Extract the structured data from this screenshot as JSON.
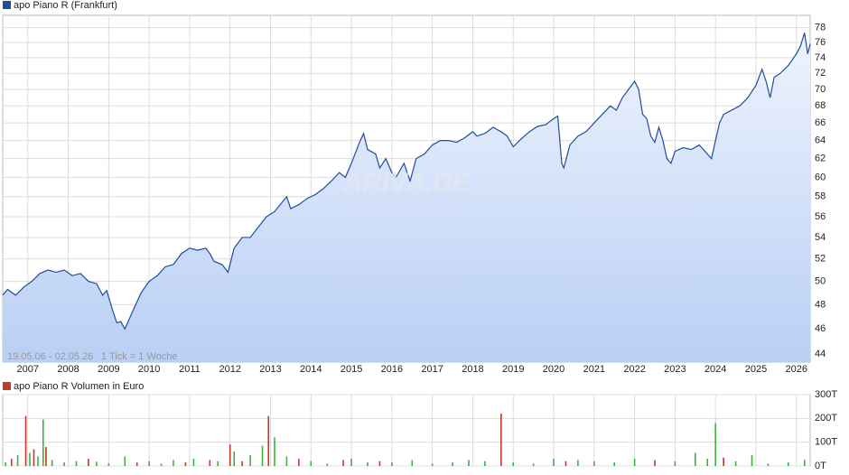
{
  "chart_data": [
    {
      "type": "line",
      "log_scale": true,
      "grid": true,
      "area": true,
      "watermark": "ARIVA.DE",
      "period": "19.05.06 - 02.05.26",
      "tick_note": "1 Tick = 1 Woche",
      "x": [
        2006.38,
        2006.5,
        2006.7,
        2006.9,
        2007.1,
        2007.3,
        2007.5,
        2007.7,
        2007.9,
        2008.1,
        2008.3,
        2008.5,
        2008.7,
        2008.85,
        2008.95,
        2009.1,
        2009.2,
        2009.3,
        2009.4,
        2009.6,
        2009.8,
        2010.0,
        2010.2,
        2010.4,
        2010.6,
        2010.8,
        2011.0,
        2011.2,
        2011.4,
        2011.5,
        2011.6,
        2011.8,
        2011.95,
        2012.1,
        2012.3,
        2012.5,
        2012.7,
        2012.9,
        2013.1,
        2013.3,
        2013.4,
        2013.5,
        2013.7,
        2013.9,
        2014.1,
        2014.3,
        2014.5,
        2014.7,
        2014.85,
        2015.0,
        2015.2,
        2015.3,
        2015.4,
        2015.6,
        2015.7,
        2015.85,
        2016.0,
        2016.1,
        2016.3,
        2016.45,
        2016.6,
        2016.8,
        2017.0,
        2017.2,
        2017.4,
        2017.6,
        2017.8,
        2018.0,
        2018.1,
        2018.3,
        2018.5,
        2018.7,
        2018.85,
        2019.0,
        2019.2,
        2019.4,
        2019.6,
        2019.8,
        2020.0,
        2020.1,
        2020.2,
        2020.25,
        2020.4,
        2020.6,
        2020.8,
        2021.0,
        2021.2,
        2021.4,
        2021.55,
        2021.7,
        2021.85,
        2022.0,
        2022.1,
        2022.2,
        2022.3,
        2022.4,
        2022.5,
        2022.6,
        2022.7,
        2022.8,
        2022.9,
        2023.0,
        2023.2,
        2023.4,
        2023.6,
        2023.8,
        2023.9,
        2024.0,
        2024.1,
        2024.2,
        2024.4,
        2024.6,
        2024.8,
        2025.0,
        2025.15,
        2025.25,
        2025.35,
        2025.45,
        2025.6,
        2025.8,
        2026.0,
        2026.1,
        2026.2,
        2026.28,
        2026.34
      ],
      "series": [
        {
          "name": "apo Piano R (Frankfurt)",
          "color": "#1f4e9c",
          "values": [
            48.8,
            49.3,
            48.8,
            49.5,
            50.0,
            50.7,
            51.0,
            50.8,
            51.0,
            50.5,
            50.7,
            50.0,
            49.8,
            48.8,
            49.2,
            47.5,
            46.5,
            46.6,
            46.0,
            47.5,
            49.0,
            50.0,
            50.5,
            51.3,
            51.5,
            52.5,
            53.0,
            52.8,
            53.0,
            52.5,
            51.8,
            51.5,
            50.8,
            53.0,
            54.0,
            54.0,
            55.0,
            56.0,
            56.5,
            57.5,
            58.0,
            56.8,
            57.2,
            57.8,
            58.2,
            58.8,
            59.6,
            60.5,
            60.0,
            61.5,
            63.8,
            64.8,
            63.0,
            62.5,
            61.0,
            62.0,
            60.5,
            60.0,
            61.5,
            59.6,
            62.0,
            62.5,
            63.5,
            64.0,
            64.0,
            63.8,
            64.3,
            65.0,
            64.5,
            64.8,
            65.5,
            65.0,
            64.5,
            63.3,
            64.2,
            65.0,
            65.6,
            65.8,
            66.5,
            66.8,
            61.5,
            61.0,
            63.5,
            64.5,
            65.0,
            66.0,
            67.0,
            68.0,
            67.5,
            69.0,
            70.0,
            71.0,
            70.0,
            67.0,
            66.5,
            64.5,
            63.8,
            65.5,
            64.0,
            62.0,
            61.5,
            62.8,
            63.2,
            63.0,
            63.5,
            62.5,
            62.0,
            64.0,
            66.0,
            67.0,
            67.5,
            68.0,
            69.0,
            70.5,
            72.5,
            71.0,
            69.0,
            71.5,
            72.0,
            73.0,
            74.5,
            75.5,
            77.3,
            74.5,
            75.8
          ]
        }
      ],
      "xlim": [
        2006.38,
        2026.34
      ],
      "xticks": [
        2007,
        2008,
        2009,
        2010,
        2011,
        2012,
        2013,
        2014,
        2015,
        2016,
        2017,
        2018,
        2019,
        2020,
        2021,
        2022,
        2023,
        2024,
        2025,
        2026
      ],
      "ylim": [
        43.4,
        79.7
      ],
      "yticks": [
        44,
        46,
        48,
        50,
        52,
        54,
        56,
        58,
        60,
        62,
        64,
        66,
        68,
        70,
        72,
        74,
        76,
        78
      ]
    },
    {
      "type": "bar",
      "grid": true,
      "x": [
        2006.45,
        2006.6,
        2006.75,
        2006.95,
        2007.05,
        2007.15,
        2007.25,
        2007.38,
        2007.45,
        2007.6,
        2007.9,
        2008.2,
        2008.5,
        2008.7,
        2009.0,
        2009.4,
        2009.7,
        2010.0,
        2010.3,
        2010.6,
        2010.9,
        2011.1,
        2011.5,
        2011.7,
        2012.0,
        2012.1,
        2012.3,
        2012.5,
        2012.8,
        2012.95,
        2013.1,
        2013.4,
        2013.7,
        2014.0,
        2014.4,
        2014.8,
        2015.0,
        2015.4,
        2015.7,
        2016.0,
        2016.5,
        2017.0,
        2017.5,
        2017.9,
        2018.3,
        2018.7,
        2019.0,
        2019.5,
        2020.0,
        2020.3,
        2020.6,
        2021.0,
        2021.5,
        2022.0,
        2022.5,
        2023.0,
        2023.5,
        2023.8,
        2024.0,
        2024.2,
        2024.5,
        2024.9,
        2025.3,
        2025.8,
        2026.2
      ],
      "series": [
        {
          "name": "apo Piano R Volumen in Euro",
          "color": "#c0392b",
          "values": [
            15,
            30,
            45,
            210,
            55,
            70,
            40,
            195,
            80,
            25,
            15,
            20,
            30,
            18,
            12,
            40,
            15,
            20,
            10,
            25,
            15,
            30,
            25,
            20,
            90,
            60,
            20,
            45,
            85,
            210,
            120,
            40,
            30,
            20,
            10,
            25,
            30,
            15,
            20,
            15,
            25,
            10,
            15,
            25,
            20,
            220,
            15,
            10,
            30,
            20,
            25,
            20,
            15,
            30,
            25,
            20,
            55,
            30,
            180,
            35,
            20,
            45,
            10,
            15,
            25
          ],
          "colors": [
            "#3bb33b",
            "#c0392b",
            "#3bb33b",
            "#c0392b",
            "#3bb33b",
            "#c0392b",
            "#3bb33b",
            "#3bb33b",
            "#c0392b",
            "#3bb33b",
            "#3bb33b",
            "#3bb33b",
            "#c0392b",
            "#3bb33b",
            "#3bb33b",
            "#3bb33b",
            "#c0392b",
            "#3bb33b",
            "#3bb33b",
            "#3bb33b",
            "#c0392b",
            "#3bb33b",
            "#c0392b",
            "#3bb33b",
            "#c0392b",
            "#3bb33b",
            "#c0392b",
            "#3bb33b",
            "#3bb33b",
            "#c0392b",
            "#3bb33b",
            "#3bb33b",
            "#c0392b",
            "#3bb33b",
            "#3bb33b",
            "#c0392b",
            "#3bb33b",
            "#3bb33b",
            "#c0392b",
            "#3bb33b",
            "#3bb33b",
            "#3bb33b",
            "#3bb33b",
            "#3bb33b",
            "#3bb33b",
            "#c0392b",
            "#3bb33b",
            "#3bb33b",
            "#3bb33b",
            "#c0392b",
            "#3bb33b",
            "#3bb33b",
            "#3bb33b",
            "#3bb33b",
            "#c0392b",
            "#3bb33b",
            "#3bb33b",
            "#3bb33b",
            "#3bb33b",
            "#c0392b",
            "#3bb33b",
            "#3bb33b",
            "#3bb33b",
            "#3bb33b",
            "#3bb33b"
          ]
        }
      ],
      "xlim": [
        2006.38,
        2026.34
      ],
      "ylim": [
        0,
        300
      ],
      "yticks": [
        {
          "value": 0,
          "label": "0T"
        },
        {
          "value": 100,
          "label": "100T"
        },
        {
          "value": 200,
          "label": "200T"
        },
        {
          "value": 300,
          "label": "300T"
        }
      ]
    }
  ]
}
